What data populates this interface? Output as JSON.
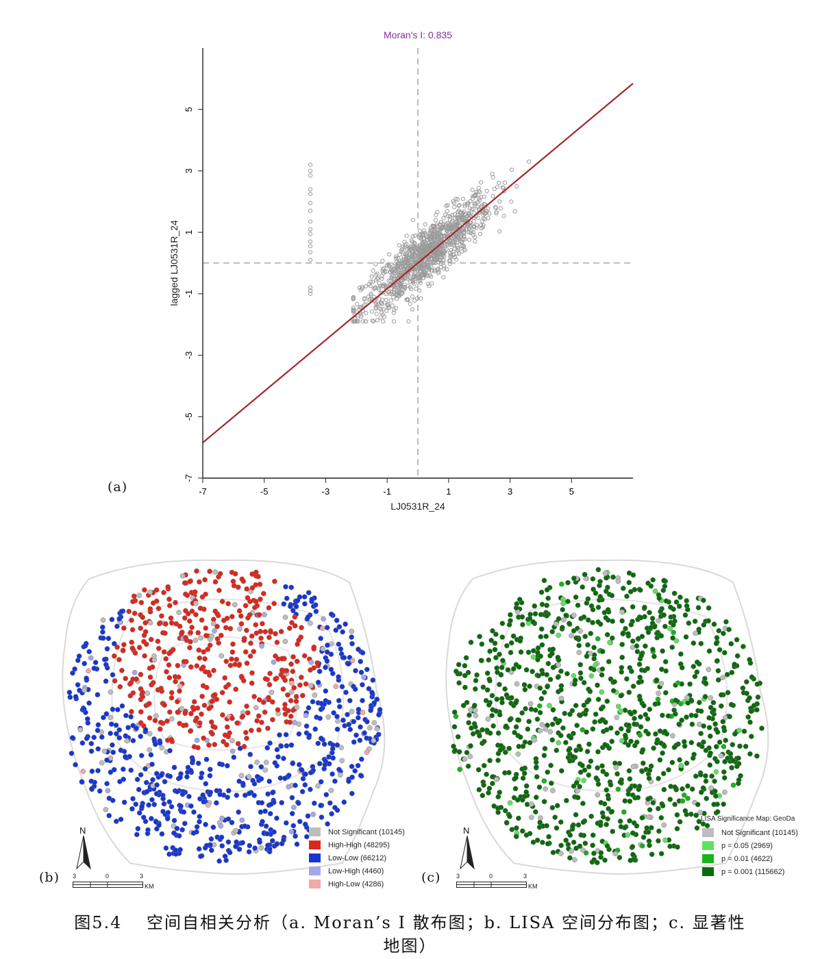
{
  "chart_data": {
    "type": "scatter",
    "title": "Moran's I: 0.835",
    "xlabel": "LJ0531R_24",
    "ylabel": "lagged LJ0531R_24",
    "xlim": [
      -7,
      7
    ],
    "ylim": [
      -7,
      7
    ],
    "xticks": [
      "-7",
      "-5",
      "-3",
      "-1",
      "1",
      "3",
      "5"
    ],
    "yticks": [
      "-7",
      "-5",
      "-3",
      "-1",
      "1",
      "3",
      "5"
    ],
    "regression_slope": 0.835,
    "reference_lines": {
      "x": 0,
      "y": 0
    },
    "colors": {
      "title": "#8a2c9c",
      "points": "#9a9a9a",
      "fit": "#a3242c",
      "refline": "#a8a8a8"
    }
  },
  "panel_labels": {
    "a": "(a)",
    "b": "(b)",
    "c": "(c)"
  },
  "map_b": {
    "legend": [
      {
        "label": "Not Significant (10145)",
        "color": "#bdbdbd"
      },
      {
        "label": "High-High (48295)",
        "color": "#e0261c"
      },
      {
        "label": "Low-Low (66212)",
        "color": "#1636d6"
      },
      {
        "label": "Low-High (4460)",
        "color": "#a7a7ea"
      },
      {
        "label": "High-Low (4286)",
        "color": "#f2a9a9"
      }
    ]
  },
  "map_c": {
    "legend_title": "LISA Significance Map: GeoDa",
    "legend": [
      {
        "label": "Not Significant (10145)",
        "color": "#bdbdbd"
      },
      {
        "label": "p = 0.05 (2969)",
        "color": "#5fe25f"
      },
      {
        "label": "p = 0.01 (4622)",
        "color": "#19b319"
      },
      {
        "label": "p = 0.001 (115662)",
        "color": "#0b6b0b"
      }
    ]
  },
  "map_common": {
    "north_label": "N",
    "scale_ticks": [
      "3",
      "0",
      "3"
    ],
    "scale_unit": "KM"
  },
  "caption": {
    "line1": "图5.4　 空间自相关分析（a. Moran’s I 散布图；b. LISA 空间分布图；c. 显著性",
    "line2": "地图）"
  }
}
